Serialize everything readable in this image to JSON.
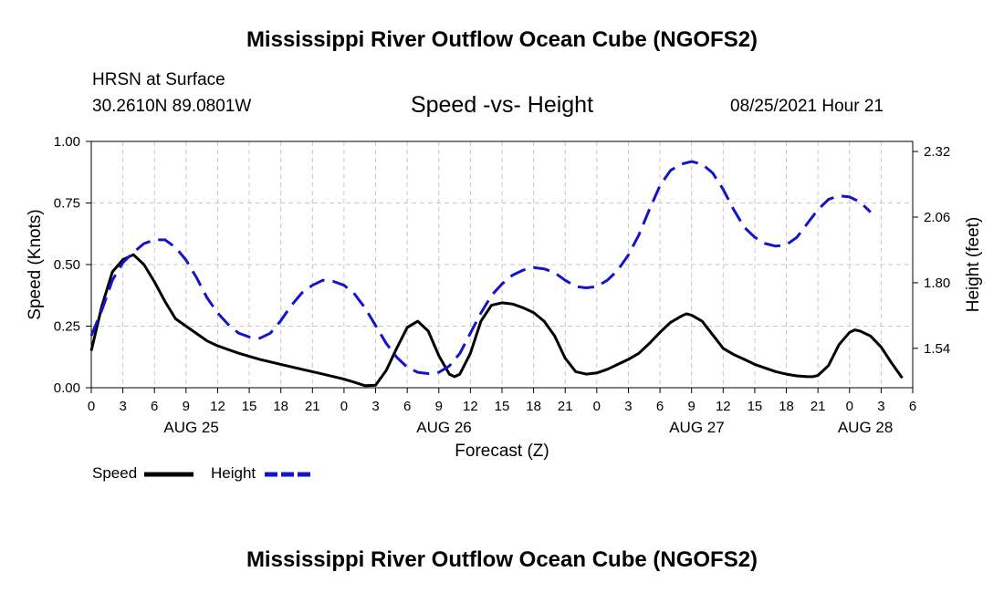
{
  "header": {
    "title_top": "Mississippi River Outflow Ocean Cube (NGOFS2)",
    "station": "HRSN at Surface",
    "coords": "30.2610N  89.0801W",
    "timestamp": "08/25/2021 Hour 21",
    "title_bottom": "Mississippi River Outflow Ocean Cube (NGOFS2)"
  },
  "legend": {
    "speed_label": "Speed",
    "height_label": "Height"
  },
  "chart_data": {
    "type": "line",
    "title": "Speed -vs- Height",
    "xlabel": "Forecast (Z)",
    "ylabel": "Speed (Knots)",
    "y2label": "Height (feet)",
    "x_range_hours": [
      0,
      78
    ],
    "ylim": [
      0,
      1
    ],
    "y2lim": [
      1.384,
      2.36
    ],
    "yticks": [
      "0.00",
      "0.25",
      "0.50",
      "0.75",
      "1.00"
    ],
    "y2ticks": [
      1.54,
      1.8,
      2.06,
      2.32
    ],
    "y2tick_labels": [
      "1.54",
      "1.80",
      "2.06",
      "2.32"
    ],
    "xtick_labels": [
      "0",
      "3",
      "6",
      "9",
      "12",
      "15",
      "18",
      "21",
      "0",
      "3",
      "6",
      "9",
      "12",
      "15",
      "18",
      "21",
      "0",
      "3",
      "6",
      "9",
      "12",
      "15",
      "18",
      "21",
      "0",
      "3",
      "6"
    ],
    "day_labels": [
      {
        "hour": 9.5,
        "label": "AUG 25"
      },
      {
        "hour": 33.5,
        "label": "AUG 26"
      },
      {
        "hour": 57.5,
        "label": "AUG 27"
      },
      {
        "hour": 73.5,
        "label": "AUG 28"
      }
    ],
    "colors": {
      "speed": "#000000",
      "height": "#1414c8",
      "grid": "#c8c8c8"
    },
    "series": [
      {
        "name": "Speed",
        "axis": "left",
        "style": "solid",
        "points": [
          [
            0,
            0.15
          ],
          [
            1,
            0.33
          ],
          [
            2,
            0.47
          ],
          [
            3,
            0.52
          ],
          [
            4,
            0.54
          ],
          [
            5,
            0.5
          ],
          [
            6,
            0.43
          ],
          [
            7,
            0.35
          ],
          [
            8,
            0.28
          ],
          [
            9,
            0.25
          ],
          [
            10,
            0.22
          ],
          [
            11,
            0.19
          ],
          [
            12,
            0.17
          ],
          [
            14,
            0.14
          ],
          [
            16,
            0.115
          ],
          [
            18,
            0.095
          ],
          [
            20,
            0.075
          ],
          [
            22,
            0.055
          ],
          [
            24,
            0.035
          ],
          [
            25,
            0.022
          ],
          [
            26,
            0.008
          ],
          [
            27,
            0.01
          ],
          [
            28,
            0.07
          ],
          [
            29,
            0.16
          ],
          [
            30,
            0.245
          ],
          [
            31,
            0.27
          ],
          [
            32,
            0.23
          ],
          [
            33,
            0.13
          ],
          [
            34,
            0.055
          ],
          [
            34.5,
            0.045
          ],
          [
            35,
            0.055
          ],
          [
            36,
            0.14
          ],
          [
            37,
            0.27
          ],
          [
            38,
            0.335
          ],
          [
            39,
            0.345
          ],
          [
            40,
            0.34
          ],
          [
            41,
            0.325
          ],
          [
            42,
            0.305
          ],
          [
            43,
            0.27
          ],
          [
            44,
            0.21
          ],
          [
            45,
            0.12
          ],
          [
            46,
            0.065
          ],
          [
            47,
            0.055
          ],
          [
            48,
            0.06
          ],
          [
            49,
            0.075
          ],
          [
            50,
            0.095
          ],
          [
            51,
            0.115
          ],
          [
            52,
            0.14
          ],
          [
            53,
            0.18
          ],
          [
            54,
            0.225
          ],
          [
            55,
            0.265
          ],
          [
            56,
            0.29
          ],
          [
            56.5,
            0.3
          ],
          [
            57,
            0.295
          ],
          [
            58,
            0.27
          ],
          [
            59,
            0.215
          ],
          [
            60,
            0.16
          ],
          [
            61,
            0.135
          ],
          [
            62,
            0.115
          ],
          [
            63,
            0.095
          ],
          [
            64,
            0.08
          ],
          [
            65,
            0.065
          ],
          [
            66,
            0.055
          ],
          [
            67,
            0.048
          ],
          [
            68,
            0.045
          ],
          [
            68.5,
            0.045
          ],
          [
            69,
            0.05
          ],
          [
            70,
            0.09
          ],
          [
            71,
            0.175
          ],
          [
            72,
            0.225
          ],
          [
            72.5,
            0.235
          ],
          [
            73,
            0.23
          ],
          [
            74,
            0.21
          ],
          [
            75,
            0.165
          ],
          [
            76,
            0.1
          ],
          [
            77,
            0.04
          ]
        ]
      },
      {
        "name": "Height",
        "axis": "right",
        "style": "dashed",
        "points": [
          [
            0,
            1.59
          ],
          [
            1,
            1.69
          ],
          [
            2,
            1.81
          ],
          [
            3,
            1.88
          ],
          [
            4,
            1.92
          ],
          [
            5,
            1.955
          ],
          [
            6,
            1.97
          ],
          [
            7,
            1.97
          ],
          [
            8,
            1.94
          ],
          [
            9,
            1.89
          ],
          [
            10,
            1.82
          ],
          [
            11,
            1.74
          ],
          [
            12,
            1.68
          ],
          [
            13,
            1.635
          ],
          [
            14,
            1.6
          ],
          [
            15,
            1.585
          ],
          [
            16,
            1.58
          ],
          [
            17,
            1.6
          ],
          [
            18,
            1.65
          ],
          [
            19,
            1.71
          ],
          [
            20,
            1.76
          ],
          [
            21,
            1.79
          ],
          [
            22,
            1.81
          ],
          [
            23,
            1.805
          ],
          [
            24,
            1.79
          ],
          [
            25,
            1.755
          ],
          [
            26,
            1.7
          ],
          [
            27,
            1.63
          ],
          [
            28,
            1.56
          ],
          [
            29,
            1.505
          ],
          [
            30,
            1.465
          ],
          [
            31,
            1.445
          ],
          [
            32,
            1.44
          ],
          [
            33,
            1.445
          ],
          [
            34,
            1.47
          ],
          [
            35,
            1.52
          ],
          [
            36,
            1.6
          ],
          [
            37,
            1.68
          ],
          [
            38,
            1.75
          ],
          [
            39,
            1.795
          ],
          [
            40,
            1.83
          ],
          [
            41,
            1.85
          ],
          [
            42,
            1.86
          ],
          [
            43,
            1.855
          ],
          [
            44,
            1.84
          ],
          [
            45,
            1.81
          ],
          [
            46,
            1.785
          ],
          [
            47,
            1.78
          ],
          [
            48,
            1.785
          ],
          [
            49,
            1.81
          ],
          [
            50,
            1.85
          ],
          [
            51,
            1.91
          ],
          [
            52,
            1.99
          ],
          [
            53,
            2.09
          ],
          [
            54,
            2.185
          ],
          [
            55,
            2.245
          ],
          [
            56,
            2.27
          ],
          [
            57,
            2.28
          ],
          [
            58,
            2.27
          ],
          [
            59,
            2.235
          ],
          [
            60,
            2.17
          ],
          [
            61,
            2.09
          ],
          [
            62,
            2.02
          ],
          [
            63,
            1.98
          ],
          [
            64,
            1.955
          ],
          [
            65,
            1.945
          ],
          [
            66,
            1.95
          ],
          [
            67,
            1.98
          ],
          [
            68,
            2.035
          ],
          [
            69,
            2.09
          ],
          [
            70,
            2.13
          ],
          [
            71,
            2.145
          ],
          [
            72,
            2.14
          ],
          [
            73,
            2.12
          ],
          [
            74,
            2.08
          ]
        ]
      }
    ]
  }
}
